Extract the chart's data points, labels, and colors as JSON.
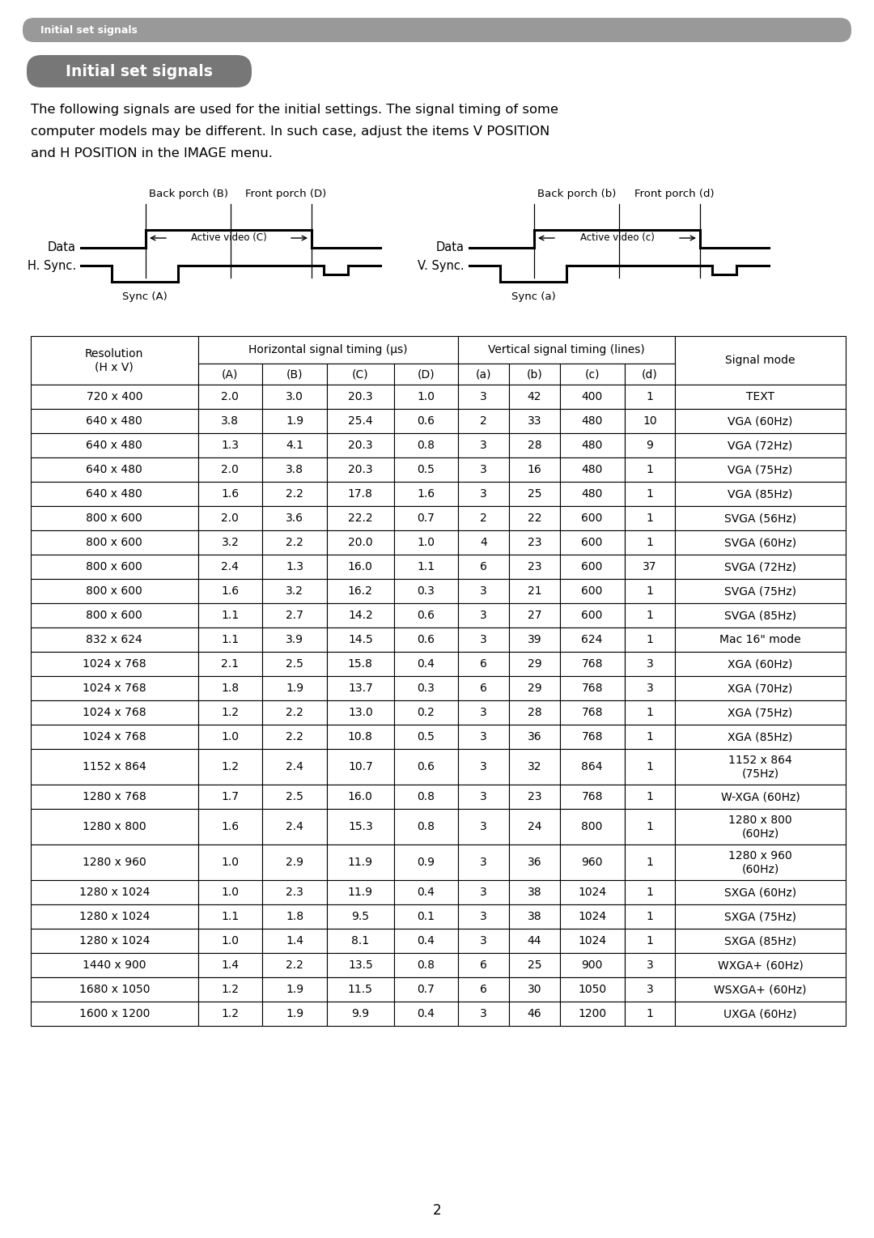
{
  "page_bg": "#ffffff",
  "header_bar_color": "#999999",
  "header_bar_text": "Initial set signals",
  "header_bar_text_color": "#ffffff",
  "title_bg": "#777777",
  "title_text": "Initial set signals",
  "title_text_color": "#ffffff",
  "body_text_line1": "The following signals are used for the initial settings. The signal timing of some",
  "body_text_line2": "computer models may be different. In such case, adjust the items V POSITION",
  "body_text_line3": "and H POSITION in the IMAGE menu.",
  "table_col_headers": [
    "(A)",
    "(B)",
    "(C)",
    "(D)",
    "(a)",
    "(b)",
    "(c)",
    "(d)"
  ],
  "rows": [
    [
      "720 x 400",
      "2.0",
      "3.0",
      "20.3",
      "1.0",
      "3",
      "42",
      "400",
      "1",
      "TEXT"
    ],
    [
      "640 x 480",
      "3.8",
      "1.9",
      "25.4",
      "0.6",
      "2",
      "33",
      "480",
      "10",
      "VGA (60Hz)"
    ],
    [
      "640 x 480",
      "1.3",
      "4.1",
      "20.3",
      "0.8",
      "3",
      "28",
      "480",
      "9",
      "VGA (72Hz)"
    ],
    [
      "640 x 480",
      "2.0",
      "3.8",
      "20.3",
      "0.5",
      "3",
      "16",
      "480",
      "1",
      "VGA (75Hz)"
    ],
    [
      "640 x 480",
      "1.6",
      "2.2",
      "17.8",
      "1.6",
      "3",
      "25",
      "480",
      "1",
      "VGA (85Hz)"
    ],
    [
      "800 x 600",
      "2.0",
      "3.6",
      "22.2",
      "0.7",
      "2",
      "22",
      "600",
      "1",
      "SVGA (56Hz)"
    ],
    [
      "800 x 600",
      "3.2",
      "2.2",
      "20.0",
      "1.0",
      "4",
      "23",
      "600",
      "1",
      "SVGA (60Hz)"
    ],
    [
      "800 x 600",
      "2.4",
      "1.3",
      "16.0",
      "1.1",
      "6",
      "23",
      "600",
      "37",
      "SVGA (72Hz)"
    ],
    [
      "800 x 600",
      "1.6",
      "3.2",
      "16.2",
      "0.3",
      "3",
      "21",
      "600",
      "1",
      "SVGA (75Hz)"
    ],
    [
      "800 x 600",
      "1.1",
      "2.7",
      "14.2",
      "0.6",
      "3",
      "27",
      "600",
      "1",
      "SVGA (85Hz)"
    ],
    [
      "832 x 624",
      "1.1",
      "3.9",
      "14.5",
      "0.6",
      "3",
      "39",
      "624",
      "1",
      "Mac 16\" mode"
    ],
    [
      "1024 x 768",
      "2.1",
      "2.5",
      "15.8",
      "0.4",
      "6",
      "29",
      "768",
      "3",
      "XGA (60Hz)"
    ],
    [
      "1024 x 768",
      "1.8",
      "1.9",
      "13.7",
      "0.3",
      "6",
      "29",
      "768",
      "3",
      "XGA (70Hz)"
    ],
    [
      "1024 x 768",
      "1.2",
      "2.2",
      "13.0",
      "0.2",
      "3",
      "28",
      "768",
      "1",
      "XGA (75Hz)"
    ],
    [
      "1024 x 768",
      "1.0",
      "2.2",
      "10.8",
      "0.5",
      "3",
      "36",
      "768",
      "1",
      "XGA (85Hz)"
    ],
    [
      "1152 x 864",
      "1.2",
      "2.4",
      "10.7",
      "0.6",
      "3",
      "32",
      "864",
      "1",
      "1152 x 864\n(75Hz)"
    ],
    [
      "1280 x 768",
      "1.7",
      "2.5",
      "16.0",
      "0.8",
      "3",
      "23",
      "768",
      "1",
      "W-XGA (60Hz)"
    ],
    [
      "1280 x 800",
      "1.6",
      "2.4",
      "15.3",
      "0.8",
      "3",
      "24",
      "800",
      "1",
      "1280 x 800\n(60Hz)"
    ],
    [
      "1280 x 960",
      "1.0",
      "2.9",
      "11.9",
      "0.9",
      "3",
      "36",
      "960",
      "1",
      "1280 x 960\n(60Hz)"
    ],
    [
      "1280 x 1024",
      "1.0",
      "2.3",
      "11.9",
      "0.4",
      "3",
      "38",
      "1024",
      "1",
      "SXGA (60Hz)"
    ],
    [
      "1280 x 1024",
      "1.1",
      "1.8",
      "9.5",
      "0.1",
      "3",
      "38",
      "1024",
      "1",
      "SXGA (75Hz)"
    ],
    [
      "1280 x 1024",
      "1.0",
      "1.4",
      "8.1",
      "0.4",
      "3",
      "44",
      "1024",
      "1",
      "SXGA (85Hz)"
    ],
    [
      "1440 x 900",
      "1.4",
      "2.2",
      "13.5",
      "0.8",
      "6",
      "25",
      "900",
      "3",
      "WXGA+ (60Hz)"
    ],
    [
      "1680 x 1050",
      "1.2",
      "1.9",
      "11.5",
      "0.7",
      "6",
      "30",
      "1050",
      "3",
      "WSXGA+ (60Hz)"
    ],
    [
      "1600 x 1200",
      "1.2",
      "1.9",
      "9.9",
      "0.4",
      "3",
      "46",
      "1200",
      "1",
      "UXGA (60Hz)"
    ]
  ],
  "page_number": "2"
}
